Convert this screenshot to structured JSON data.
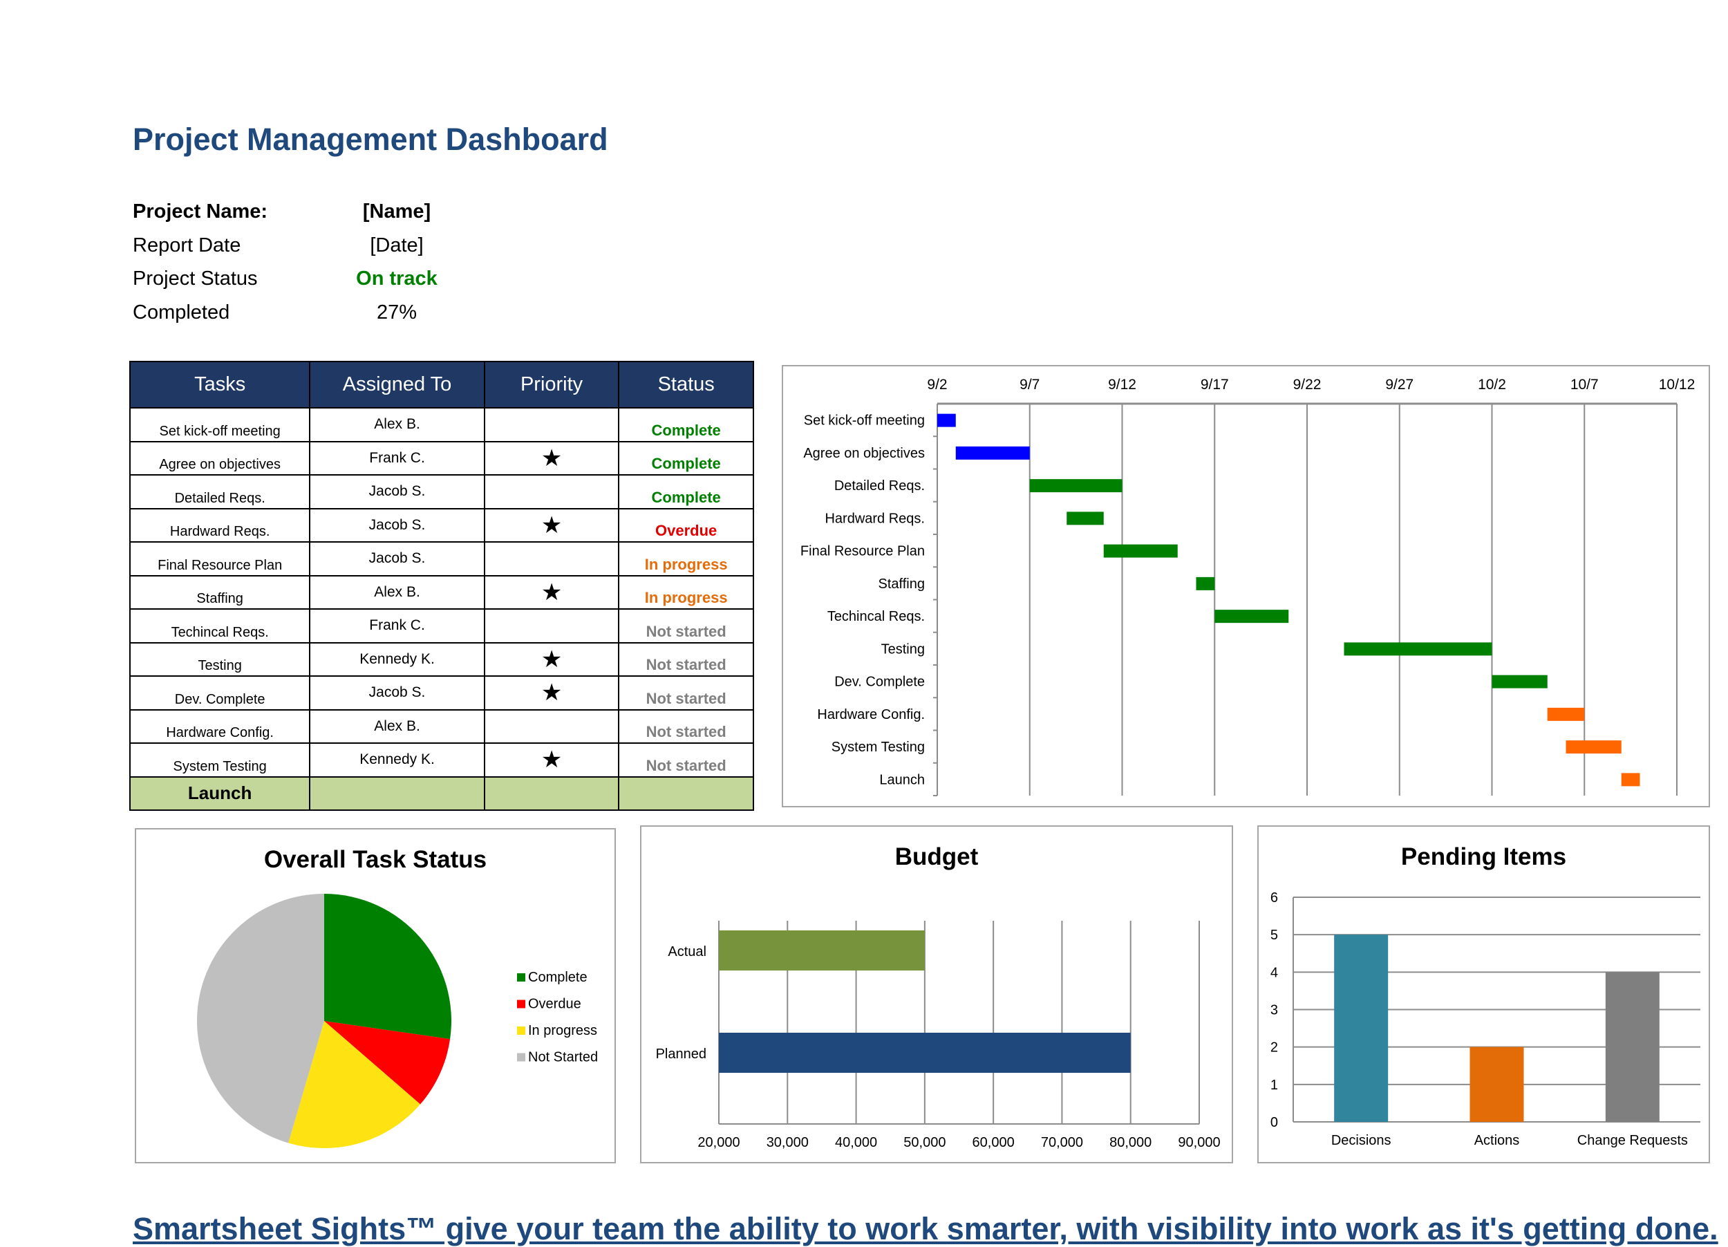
{
  "title": "Project Management Dashboard",
  "info": [
    {
      "label": "Project Name:",
      "value": "[Name]",
      "bold": true
    },
    {
      "label": "Report Date",
      "value": "[Date]"
    },
    {
      "label": "Project Status",
      "value": "On track",
      "color": "#008000"
    },
    {
      "label": "Completed",
      "value": "27%"
    }
  ],
  "table": {
    "headers": [
      "Tasks",
      "Assigned To",
      "Priority",
      "Status"
    ],
    "rows": [
      {
        "task": "Set kick-off meeting",
        "assigned": "Alex B.",
        "priority": "",
        "status": "Complete"
      },
      {
        "task": "Agree on objectives",
        "assigned": "Frank C.",
        "priority": "★",
        "status": "Complete"
      },
      {
        "task": "Detailed Reqs.",
        "assigned": "Jacob S.",
        "priority": "",
        "status": "Complete"
      },
      {
        "task": "Hardward Reqs.",
        "assigned": "Jacob S.",
        "priority": "★",
        "status": "Overdue"
      },
      {
        "task": "Final Resource Plan",
        "assigned": "Jacob S.",
        "priority": "",
        "status": "In progress"
      },
      {
        "task": "Staffing",
        "assigned": "Alex B.",
        "priority": "★",
        "status": "In progress"
      },
      {
        "task": "Techincal Reqs.",
        "assigned": "Frank C.",
        "priority": "",
        "status": "Not started"
      },
      {
        "task": "Testing",
        "assigned": "Kennedy K.",
        "priority": "★",
        "status": "Not started"
      },
      {
        "task": "Dev. Complete",
        "assigned": "Jacob S.",
        "priority": "★",
        "status": "Not started"
      },
      {
        "task": "Hardware Config.",
        "assigned": "Alex B.",
        "priority": "",
        "status": "Not started"
      },
      {
        "task": "System Testing",
        "assigned": "Kennedy K.",
        "priority": "★",
        "status": "Not started"
      }
    ],
    "launch": "Launch",
    "status_colors": {
      "Complete": "#008000",
      "Overdue": "#e00000",
      "In progress": "#e46c0a",
      "Not started": "#7f7f7f"
    }
  },
  "chart_data": [
    {
      "type": "gantt",
      "x_ticks": [
        "9/2",
        "9/7",
        "9/12",
        "9/17",
        "9/22",
        "9/27",
        "10/2",
        "10/7",
        "10/12"
      ],
      "tasks": [
        {
          "name": "Set kick-off meeting",
          "start": "9/2",
          "end": "9/3",
          "color": "#0000ff"
        },
        {
          "name": "Agree on objectives",
          "start": "9/3",
          "end": "9/7",
          "color": "#0000ff"
        },
        {
          "name": "Detailed Reqs.",
          "start": "9/7",
          "end": "9/12",
          "color": "#008000"
        },
        {
          "name": "Hardward Reqs.",
          "start": "9/9",
          "end": "9/11",
          "color": "#008000"
        },
        {
          "name": "Final Resource Plan",
          "start": "9/11",
          "end": "9/15",
          "color": "#008000"
        },
        {
          "name": "Staffing",
          "start": "9/16",
          "end": "9/17",
          "color": "#008000"
        },
        {
          "name": "Techincal Reqs.",
          "start": "9/17",
          "end": "9/21",
          "color": "#008000"
        },
        {
          "name": "Testing",
          "start": "9/24",
          "end": "10/2",
          "color": "#008000"
        },
        {
          "name": "Dev. Complete",
          "start": "10/2",
          "end": "10/5",
          "color": "#008000"
        },
        {
          "name": "Hardware Config.",
          "start": "10/5",
          "end": "10/7",
          "color": "#ff6600"
        },
        {
          "name": "System Testing",
          "start": "10/6",
          "end": "10/9",
          "color": "#ff6600"
        },
        {
          "name": "Launch",
          "start": "10/9",
          "end": "10/10",
          "color": "#ff6600"
        }
      ]
    },
    {
      "type": "pie",
      "title": "Overall Task Status",
      "legend": "right",
      "slices": [
        {
          "name": "Complete",
          "value": 3,
          "color": "#008000"
        },
        {
          "name": "Overdue",
          "value": 1,
          "color": "#ff0000"
        },
        {
          "name": "In progress",
          "value": 2,
          "color": "#ffe211"
        },
        {
          "name": "Not Started",
          "value": 5,
          "color": "#bfbfbf"
        }
      ]
    },
    {
      "type": "bar",
      "orientation": "horizontal",
      "title": "Budget",
      "categories": [
        "Actual",
        "Planned"
      ],
      "values": [
        50000,
        80000
      ],
      "colors": [
        "#77933c",
        "#1f497d"
      ],
      "xlim": [
        20000,
        90000
      ],
      "x_ticks": [
        "20,000",
        "30,000",
        "40,000",
        "50,000",
        "60,000",
        "70,000",
        "80,000",
        "90,000"
      ],
      "grid": true
    },
    {
      "type": "bar",
      "title": "Pending Items",
      "categories": [
        "Decisions",
        "Actions",
        "Change Requests"
      ],
      "values": [
        5,
        2,
        4
      ],
      "colors": [
        "#31859c",
        "#e36c09",
        "#7f7f7f"
      ],
      "ylim": [
        0,
        6
      ],
      "y_ticks": [
        "0",
        "1",
        "2",
        "3",
        "4",
        "5",
        "6"
      ],
      "grid": true
    }
  ],
  "footer": "Smartsheet Sights™ give your team the ability to work smarter, with visibility into work as it's getting done."
}
